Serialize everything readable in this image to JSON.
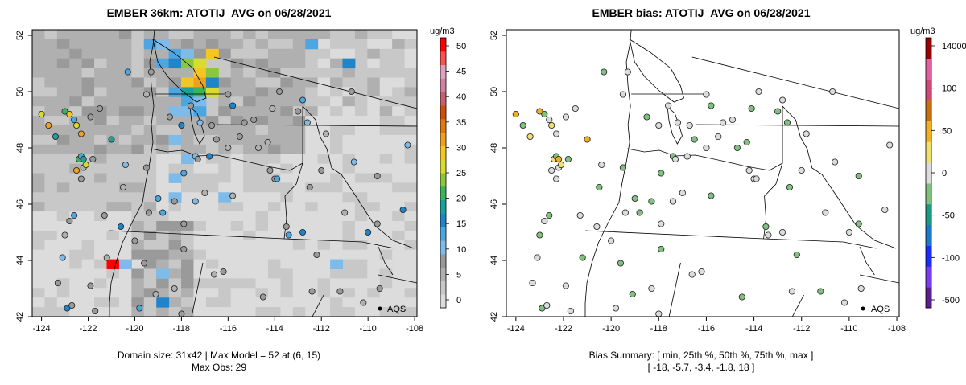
{
  "panels": [
    {
      "title": "EMBER 36km: ATOTIJ_AVG on 06/28/2021",
      "caption_line1": "Domain size: 31x42 | Max Model = 52 at (6, 15)",
      "caption_line2": "Max Obs: 29",
      "colorbar_unit": "ug/m3",
      "colorbar_ticks": [
        "50",
        "45",
        "40",
        "35",
        "30",
        "25",
        "20",
        "15",
        "10",
        "5",
        "0"
      ],
      "legend_label": "AQS"
    },
    {
      "title": "EMBER bias: ATOTIJ_AVG on 06/28/2021",
      "caption_line1": "Bias Summary: [ min, 25th %, 50th %, 75th %, max ]",
      "caption_line2": "[ -18,   -5.7,   -3.4,   -1.8,   18 ]",
      "colorbar_unit": "ug/m3",
      "colorbar_ticks": [
        "14000",
        "100",
        "50",
        "0",
        "-50",
        "-100",
        "-500"
      ],
      "legend_label": "AQS"
    }
  ],
  "axes": {
    "x_ticks": [
      "-124",
      "-122",
      "-120",
      "-118",
      "-116",
      "-114",
      "-112",
      "-110",
      "-108"
    ],
    "y_ticks": [
      "52",
      "50",
      "48",
      "46",
      "44",
      "42"
    ],
    "x_values": [
      -124,
      -122,
      -120,
      -118,
      -116,
      -114,
      -112,
      -110,
      -108
    ],
    "y_values": [
      52,
      50,
      48,
      46,
      44,
      42
    ],
    "lon_range": [
      -124.4,
      -107.9
    ],
    "lat_range": [
      42.0,
      52.2
    ]
  },
  "colors": {
    "model_scale": [
      "#dcdcdc",
      "#c8c8c8",
      "#b0b0b0",
      "#9a9a9a",
      "#7fbbe8",
      "#4ea6e0",
      "#1f84c9",
      "#19a19a",
      "#3bb35a",
      "#8cc63f",
      "#d9dc2f",
      "#f3c623",
      "#f0a020",
      "#e07a10",
      "#cc5008",
      "#c46070",
      "#d080a0",
      "#e0a0c0",
      "#ff5050",
      "#ff0000"
    ],
    "bias_scale": [
      "#5a1f8a",
      "#7a3cf0",
      "#1a2cff",
      "#1c78c8",
      "#1a9a80",
      "#7fc27f",
      "#dcdcdc",
      "#f0e070",
      "#f0b020",
      "#c87010",
      "#d04878",
      "#e060a0",
      "#9a0000"
    ]
  }
}
